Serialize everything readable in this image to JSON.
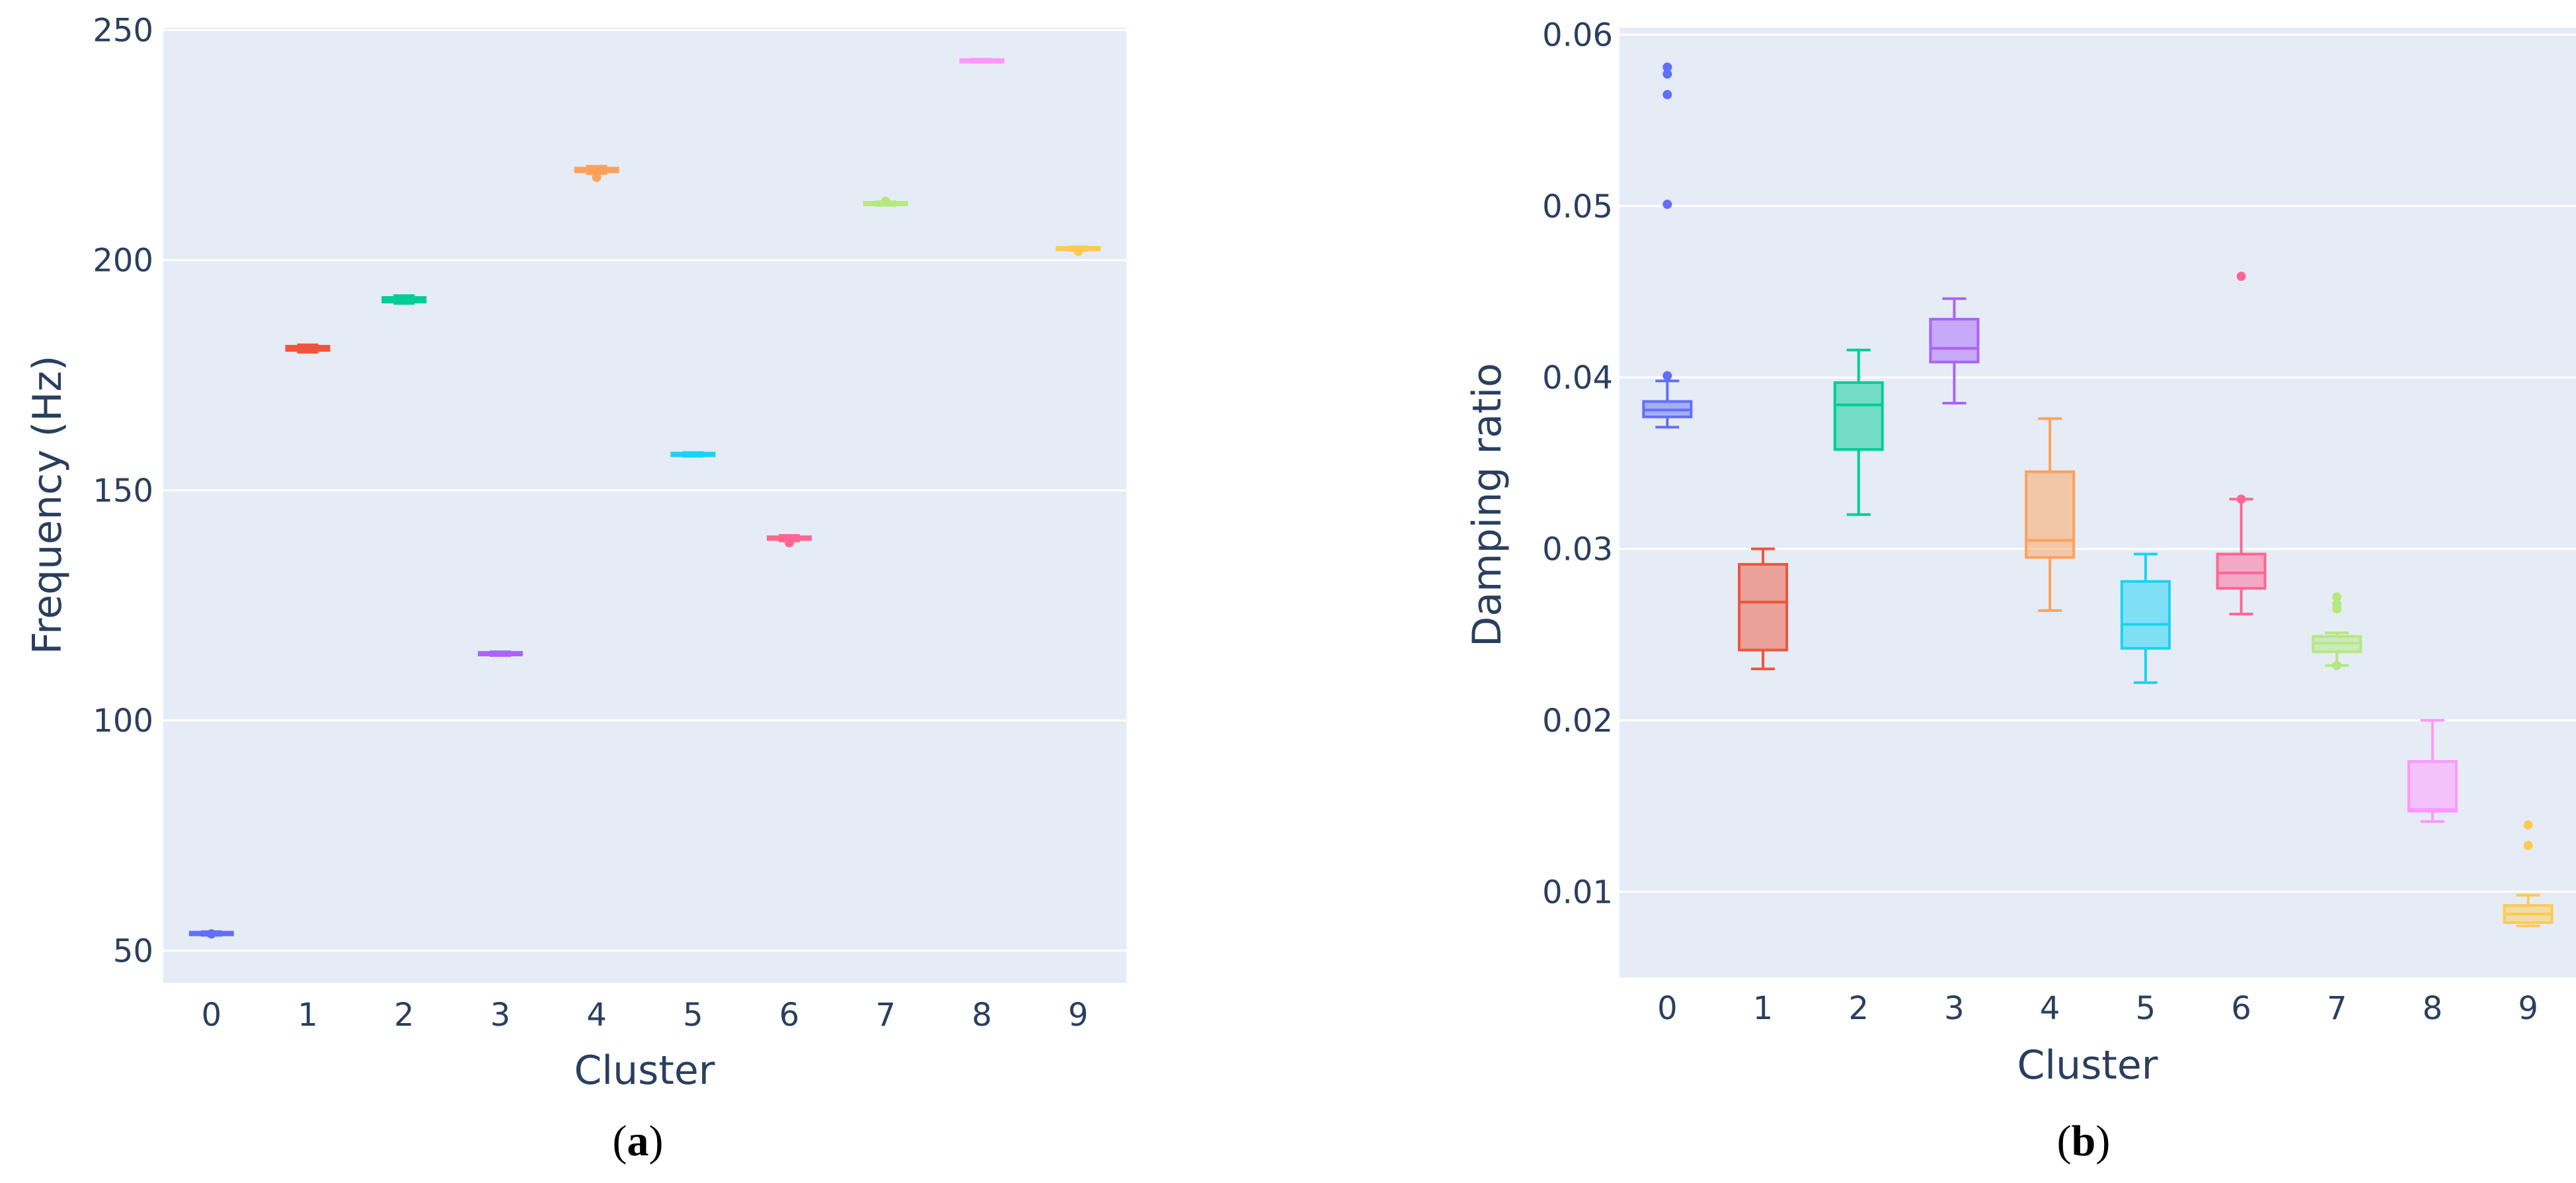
{
  "colors": [
    "#636efa",
    "#ef553b",
    "#00cc96",
    "#ab63fa",
    "#ffa15a",
    "#19d3f3",
    "#ff6692",
    "#b6e880",
    "#ff97ff",
    "#fecb52"
  ],
  "plot_background": "#e5ecf6",
  "captions": [
    {
      "open": "(",
      "letter": "a",
      "close": ")"
    },
    {
      "open": "(",
      "letter": "b",
      "close": ")"
    }
  ],
  "chart_data": [
    {
      "type": "box",
      "xlabel": "Cluster",
      "ylabel": "Frequency (Hz)",
      "categories": [
        "0",
        "1",
        "2",
        "3",
        "4",
        "5",
        "6",
        "7",
        "8",
        "9"
      ],
      "ylim": [
        43,
        250.5
      ],
      "yticks": [
        50,
        100,
        150,
        200,
        250
      ],
      "grid": true,
      "boxes": [
        {
          "cluster": "0",
          "min": 53.3,
          "q1": 53.5,
          "median": 53.7,
          "q3": 53.9,
          "max": 54.1,
          "outliers": [
            53.6
          ]
        },
        {
          "cluster": "1",
          "min": 180.0,
          "q1": 180.4,
          "median": 180.8,
          "q3": 181.3,
          "max": 181.6,
          "outliers": []
        },
        {
          "cluster": "2",
          "min": 190.6,
          "q1": 190.9,
          "median": 191.4,
          "q3": 191.9,
          "max": 192.3,
          "outliers": []
        },
        {
          "cluster": "3",
          "min": 114.1,
          "q1": 114.3,
          "median": 114.5,
          "q3": 114.7,
          "max": 114.9,
          "outliers": []
        },
        {
          "cluster": "4",
          "min": 218.8,
          "q1": 219.2,
          "median": 219.6,
          "q3": 220.0,
          "max": 220.4,
          "outliers": [
            218.0
          ]
        },
        {
          "cluster": "5",
          "min": 157.4,
          "q1": 157.6,
          "median": 157.8,
          "q3": 158.0,
          "max": 158.2,
          "outliers": []
        },
        {
          "cluster": "6",
          "min": 139.0,
          "q1": 139.3,
          "median": 139.6,
          "q3": 139.9,
          "max": 140.2,
          "outliers": [
            138.6
          ]
        },
        {
          "cluster": "7",
          "min": 211.9,
          "q1": 212.1,
          "median": 212.3,
          "q3": 212.5,
          "max": 212.7,
          "outliers": [
            212.8
          ]
        },
        {
          "cluster": "8",
          "min": 243.0,
          "q1": 243.1,
          "median": 243.3,
          "q3": 243.5,
          "max": 243.7,
          "outliers": []
        },
        {
          "cluster": "9",
          "min": 202.1,
          "q1": 202.3,
          "median": 202.5,
          "q3": 202.7,
          "max": 202.9,
          "outliers": [
            201.9
          ]
        }
      ]
    },
    {
      "type": "box",
      "xlabel": "Cluster",
      "ylabel": "Damping ratio",
      "categories": [
        "0",
        "1",
        "2",
        "3",
        "4",
        "5",
        "6",
        "7",
        "8",
        "9"
      ],
      "ylim": [
        0.005,
        0.0604
      ],
      "yticks": [
        "0.01",
        "0.02",
        "0.03",
        "0.04",
        "0.05",
        "0.06"
      ],
      "grid": true,
      "boxes": [
        {
          "cluster": "0",
          "min": 0.0371,
          "q1": 0.0377,
          "median": 0.0381,
          "q3": 0.0386,
          "max": 0.0398,
          "outliers": [
            0.0401,
            0.0501,
            0.0565,
            0.0577,
            0.0581
          ]
        },
        {
          "cluster": "1",
          "min": 0.023,
          "q1": 0.0241,
          "median": 0.0269,
          "q3": 0.0291,
          "max": 0.03,
          "outliers": []
        },
        {
          "cluster": "2",
          "min": 0.032,
          "q1": 0.0358,
          "median": 0.0384,
          "q3": 0.0397,
          "max": 0.0416,
          "outliers": []
        },
        {
          "cluster": "3",
          "min": 0.0385,
          "q1": 0.0409,
          "median": 0.0417,
          "q3": 0.0434,
          "max": 0.0446,
          "outliers": []
        },
        {
          "cluster": "4",
          "min": 0.0264,
          "q1": 0.0295,
          "median": 0.0305,
          "q3": 0.0345,
          "max": 0.0376,
          "outliers": []
        },
        {
          "cluster": "5",
          "min": 0.0222,
          "q1": 0.0242,
          "median": 0.0256,
          "q3": 0.0281,
          "max": 0.0297,
          "outliers": []
        },
        {
          "cluster": "6",
          "min": 0.0262,
          "q1": 0.0277,
          "median": 0.0286,
          "q3": 0.0297,
          "max": 0.0329,
          "outliers": [
            0.0329,
            0.0459
          ]
        },
        {
          "cluster": "7",
          "min": 0.0232,
          "q1": 0.024,
          "median": 0.0245,
          "q3": 0.0249,
          "max": 0.0251,
          "outliers": [
            0.0232,
            0.0265,
            0.0268,
            0.0272
          ]
        },
        {
          "cluster": "8",
          "min": 0.0141,
          "q1": 0.0147,
          "median": 0.0148,
          "q3": 0.0176,
          "max": 0.02,
          "outliers": []
        },
        {
          "cluster": "9",
          "min": 0.008,
          "q1": 0.0082,
          "median": 0.0087,
          "q3": 0.0092,
          "max": 0.0098,
          "outliers": [
            0.0127,
            0.0139
          ]
        }
      ]
    }
  ]
}
